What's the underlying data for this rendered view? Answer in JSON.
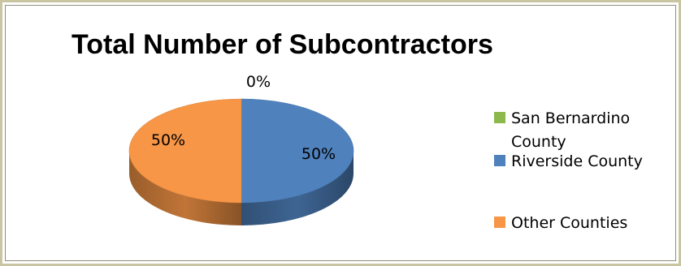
{
  "chart_data": {
    "type": "pie",
    "title": "Total Number of Subcontractors",
    "categories": [
      "San Bernardino County",
      "Riverside County",
      "Other Counties"
    ],
    "values": [
      0,
      50,
      50
    ],
    "value_labels": [
      "0%",
      "50%",
      "50%"
    ],
    "colors": [
      "#8cb84c",
      "#4f81bd",
      "#f79646"
    ],
    "legend_position": "right",
    "legend_lines": [
      [
        "San Bernardino",
        "County"
      ],
      [
        "Riverside County"
      ],
      [
        "Other Counties"
      ]
    ],
    "style": "3d"
  }
}
